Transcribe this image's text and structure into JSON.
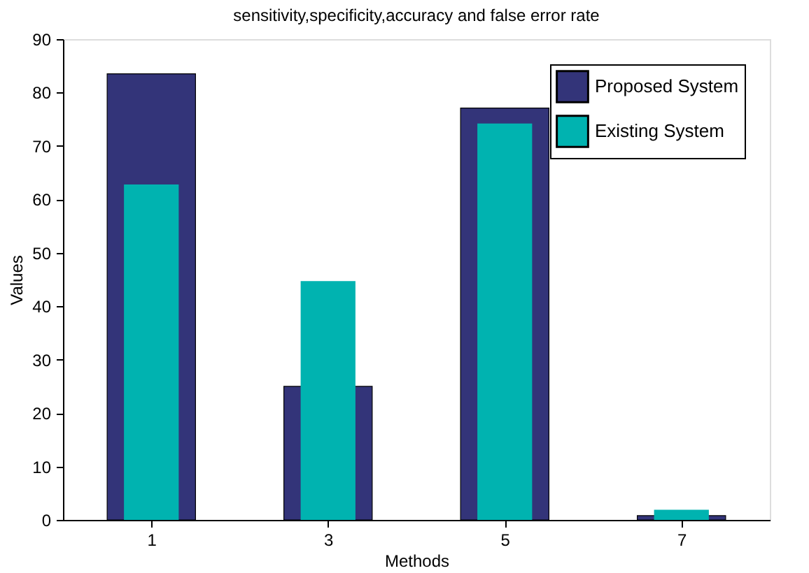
{
  "chart_data": {
    "type": "bar",
    "title": "sensitivity,specificity,accuracy and false error rate",
    "xlabel": "Methods",
    "ylabel": "Values",
    "x": [
      1,
      3,
      5,
      7
    ],
    "series": [
      {
        "name": "Proposed System",
        "color": "#333479",
        "values": [
          83.5,
          25.0,
          77.1,
          0.8
        ]
      },
      {
        "name": "Existing System",
        "color": "#00b3b0",
        "values": [
          62.8,
          44.7,
          74.2,
          1.9
        ]
      }
    ],
    "xlim": [
      0,
      8
    ],
    "xticks": [
      1,
      3,
      5,
      7
    ],
    "ylim": [
      0,
      90
    ],
    "yticks": [
      0,
      10,
      20,
      30,
      40,
      50,
      60,
      70,
      80,
      90
    ],
    "grid": false,
    "legend": "top right"
  }
}
